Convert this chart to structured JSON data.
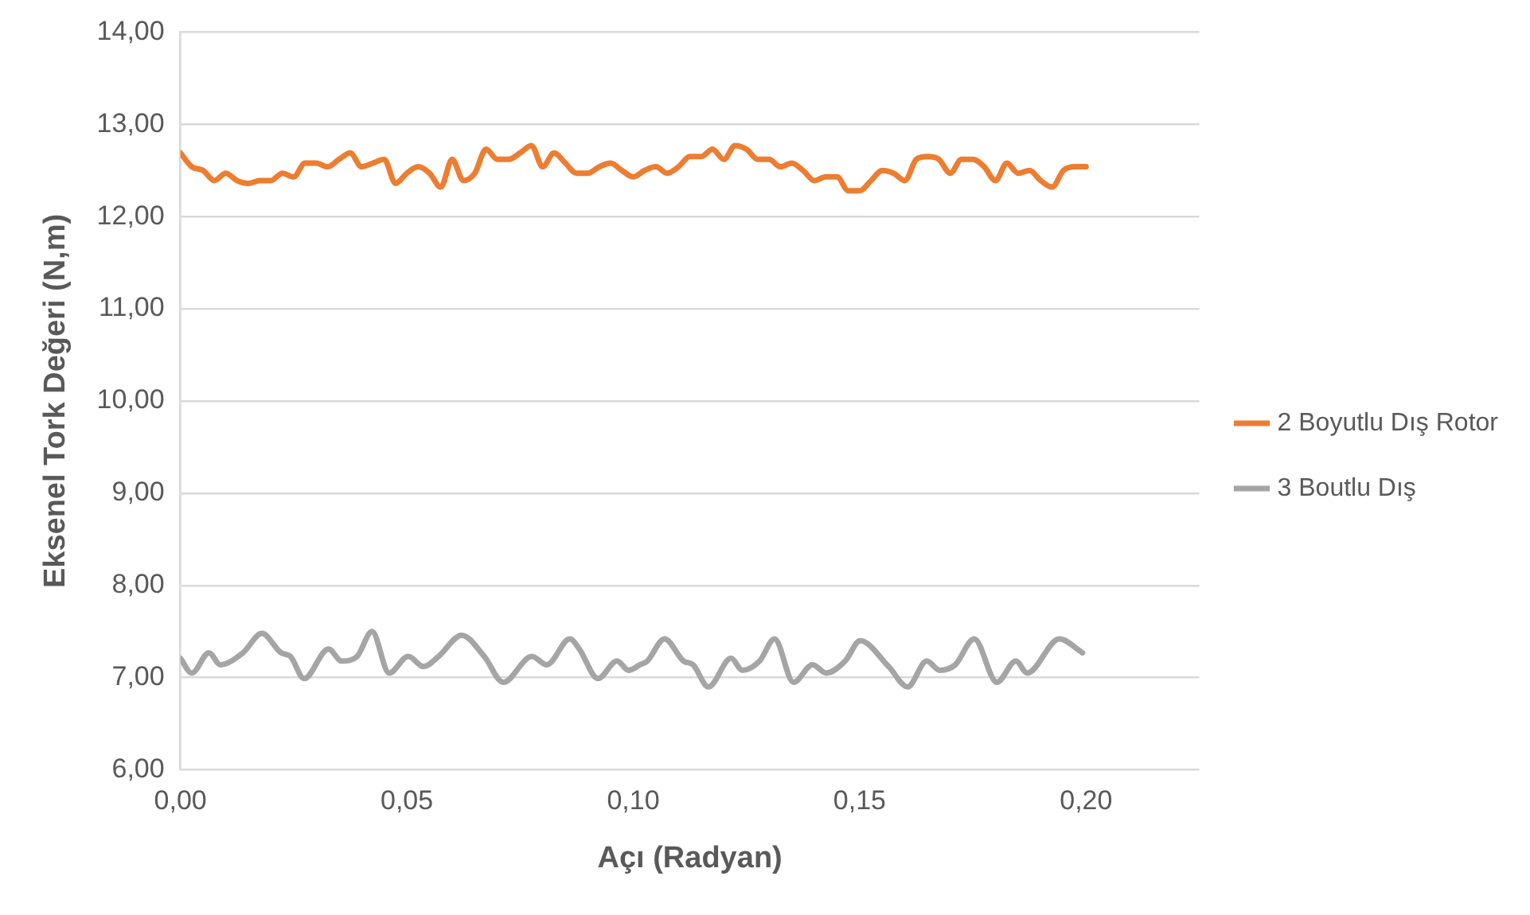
{
  "chart_data": {
    "type": "line",
    "xlabel": "Açı (Radyan)",
    "ylabel": "Eksenel Tork Değeri (N,m)",
    "xlim": [
      0,
      0.225
    ],
    "xticks": [
      {
        "value": 0,
        "label": "0,00"
      },
      {
        "value": 0.05,
        "label": "0,05"
      },
      {
        "value": 0.1,
        "label": "0,10"
      },
      {
        "value": 0.15,
        "label": "0,15"
      },
      {
        "value": 0.2,
        "label": "0,20"
      }
    ],
    "ylim": [
      6,
      14
    ],
    "yticks": [
      {
        "value": 6,
        "label": "6,00"
      },
      {
        "value": 7,
        "label": "7,00"
      },
      {
        "value": 8,
        "label": "8,00"
      },
      {
        "value": 9,
        "label": "9,00"
      },
      {
        "value": 10,
        "label": "10,00"
      },
      {
        "value": 11,
        "label": "11,00"
      },
      {
        "value": 12,
        "label": "12,00"
      },
      {
        "value": 13,
        "label": "13,00"
      },
      {
        "value": 14,
        "label": "14,00"
      }
    ],
    "grid": "y",
    "legend": "right",
    "marker": "none",
    "line_style": "solid",
    "series": [
      {
        "name": "2 Boyutlu Dış Rotor",
        "color": "#ed7d31",
        "x": [
          0,
          0.0025,
          0.005,
          0.0075,
          0.01,
          0.0125,
          0.015,
          0.0175,
          0.02,
          0.0225,
          0.025,
          0.0275,
          0.03,
          0.0325,
          0.035,
          0.0375,
          0.04,
          0.0425,
          0.045,
          0.0475,
          0.05,
          0.0525,
          0.055,
          0.0575,
          0.06,
          0.0625,
          0.065,
          0.0675,
          0.07,
          0.0725,
          0.075,
          0.0775,
          0.08,
          0.0825,
          0.085,
          0.0875,
          0.09,
          0.0925,
          0.095,
          0.0975,
          0.1,
          0.1025,
          0.105,
          0.1075,
          0.11,
          0.1125,
          0.115,
          0.1175,
          0.12,
          0.1225,
          0.125,
          0.1275,
          0.13,
          0.1325,
          0.135,
          0.1375,
          0.14,
          0.1425,
          0.145,
          0.1475,
          0.15,
          0.1525,
          0.155,
          0.1575,
          0.16,
          0.1625,
          0.165,
          0.1675,
          0.17,
          0.1725,
          0.175,
          0.1775,
          0.18,
          0.1825,
          0.185,
          0.1875,
          0.19,
          0.1925,
          0.195,
          0.1975,
          0.2
        ],
        "values": [
          12.69,
          12.54,
          12.5,
          12.39,
          12.47,
          12.39,
          12.36,
          12.39,
          12.39,
          12.47,
          12.43,
          12.58,
          12.58,
          12.54,
          12.62,
          12.69,
          12.54,
          12.58,
          12.62,
          12.36,
          12.47,
          12.54,
          12.47,
          12.32,
          12.62,
          12.39,
          12.47,
          12.73,
          12.62,
          12.62,
          12.69,
          12.77,
          12.54,
          12.69,
          12.58,
          12.47,
          12.47,
          12.54,
          12.58,
          12.5,
          12.43,
          12.5,
          12.54,
          12.47,
          12.54,
          12.65,
          12.65,
          12.73,
          12.62,
          12.77,
          12.73,
          12.62,
          12.62,
          12.54,
          12.58,
          12.5,
          12.39,
          12.43,
          12.43,
          12.28,
          12.28,
          12.39,
          12.5,
          12.47,
          12.39,
          12.62,
          12.65,
          12.62,
          12.47,
          12.62,
          12.62,
          12.54,
          12.39,
          12.58,
          12.47,
          12.5,
          12.39,
          12.32,
          12.5,
          12.54,
          12.54
        ]
      },
      {
        "name": "3 Boutlu Dış",
        "color": "#a5a5a5",
        "x": [
          0,
          0.0025,
          0.0063,
          0.0088,
          0.0138,
          0.018,
          0.0222,
          0.0243,
          0.0273,
          0.0327,
          0.0356,
          0.039,
          0.0423,
          0.0461,
          0.0503,
          0.0537,
          0.057,
          0.0621,
          0.0671,
          0.0713,
          0.0776,
          0.0809,
          0.086,
          0.0881,
          0.0922,
          0.0964,
          0.099,
          0.1015,
          0.1031,
          0.1069,
          0.1111,
          0.1132,
          0.1166,
          0.1216,
          0.1241,
          0.1279,
          0.1312,
          0.1354,
          0.1396,
          0.1426,
          0.1468,
          0.1501,
          0.1564,
          0.1606,
          0.1648,
          0.1677,
          0.1711,
          0.1753,
          0.1803,
          0.1845,
          0.187,
          0.1941,
          0.1992
        ],
        "values": [
          7.21,
          7.05,
          7.27,
          7.14,
          7.27,
          7.48,
          7.27,
          7.23,
          6.99,
          7.31,
          7.18,
          7.23,
          7.5,
          7.05,
          7.23,
          7.12,
          7.23,
          7.46,
          7.23,
          6.95,
          7.23,
          7.14,
          7.42,
          7.31,
          6.99,
          7.18,
          7.08,
          7.14,
          7.18,
          7.42,
          7.18,
          7.14,
          6.9,
          7.21,
          7.08,
          7.18,
          7.42,
          6.95,
          7.14,
          7.05,
          7.18,
          7.4,
          7.12,
          6.9,
          7.18,
          7.08,
          7.14,
          7.42,
          6.95,
          7.18,
          7.05,
          7.42,
          7.27
        ]
      }
    ]
  }
}
